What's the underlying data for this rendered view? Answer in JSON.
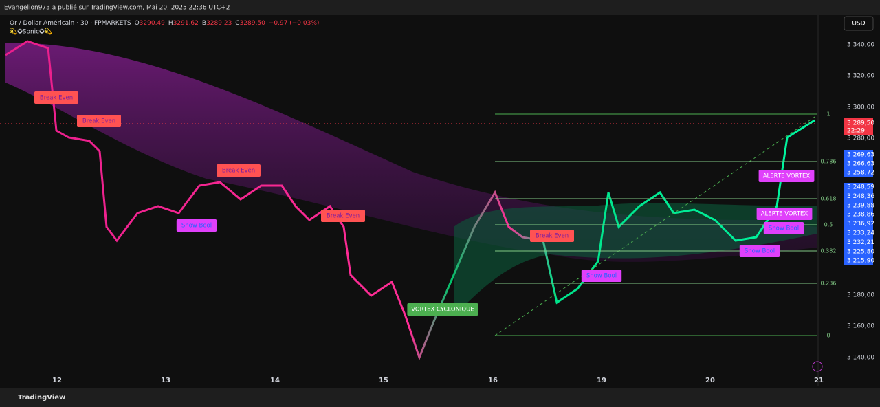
{
  "header": {
    "publisher": "Evangelion973 a publié sur TradingView.com, Mai 20, 2025 22:36 UTC+2"
  },
  "legend": {
    "symbol": "Or / Dollar Américain · 30 · FPMARKETS",
    "o_label": "O",
    "o": "3290,49",
    "h_label": "H",
    "h": "3291,62",
    "b_label": "B",
    "b": "3289,23",
    "c_label": "C",
    "c": "3289,50",
    "change": "−0,97 (−0,03%)",
    "indicator": "💫✪Sonic✪💫"
  },
  "currency": "USD",
  "price_axis": [
    "3 340,00",
    "3 320,00",
    "3 300,00",
    "3 280,00",
    "3 180,00",
    "3 160,00",
    "3 140,00"
  ],
  "last_price": {
    "price": "3 289,50",
    "countdown": "22:29"
  },
  "level_labels": [
    "3 269,63",
    "3 266,63",
    "3 258,72",
    "3 248,59",
    "3 248,36",
    "3 239,88",
    "3 238,86",
    "3 236,92",
    "3 233,24",
    "3 232,21",
    "3 225,80",
    "3 215,90"
  ],
  "date_axis": [
    "12",
    "13",
    "14",
    "15",
    "16",
    "19",
    "20",
    "21"
  ],
  "fib_levels": [
    "1",
    "0.786",
    "0.618",
    "0.5",
    "0.382",
    "0.236",
    "0"
  ],
  "annotations": [
    "Break Even",
    "Break Even",
    "Break Even",
    "Break Even",
    "Break Even",
    "Snow Bool",
    "Snow Bool",
    "Snow Bool",
    "Snow Bool",
    "VORTEX CYCLONIQUE",
    "ALERTE VORTEX",
    "ALERTE VORTEX"
  ],
  "footer": "TradingView"
}
